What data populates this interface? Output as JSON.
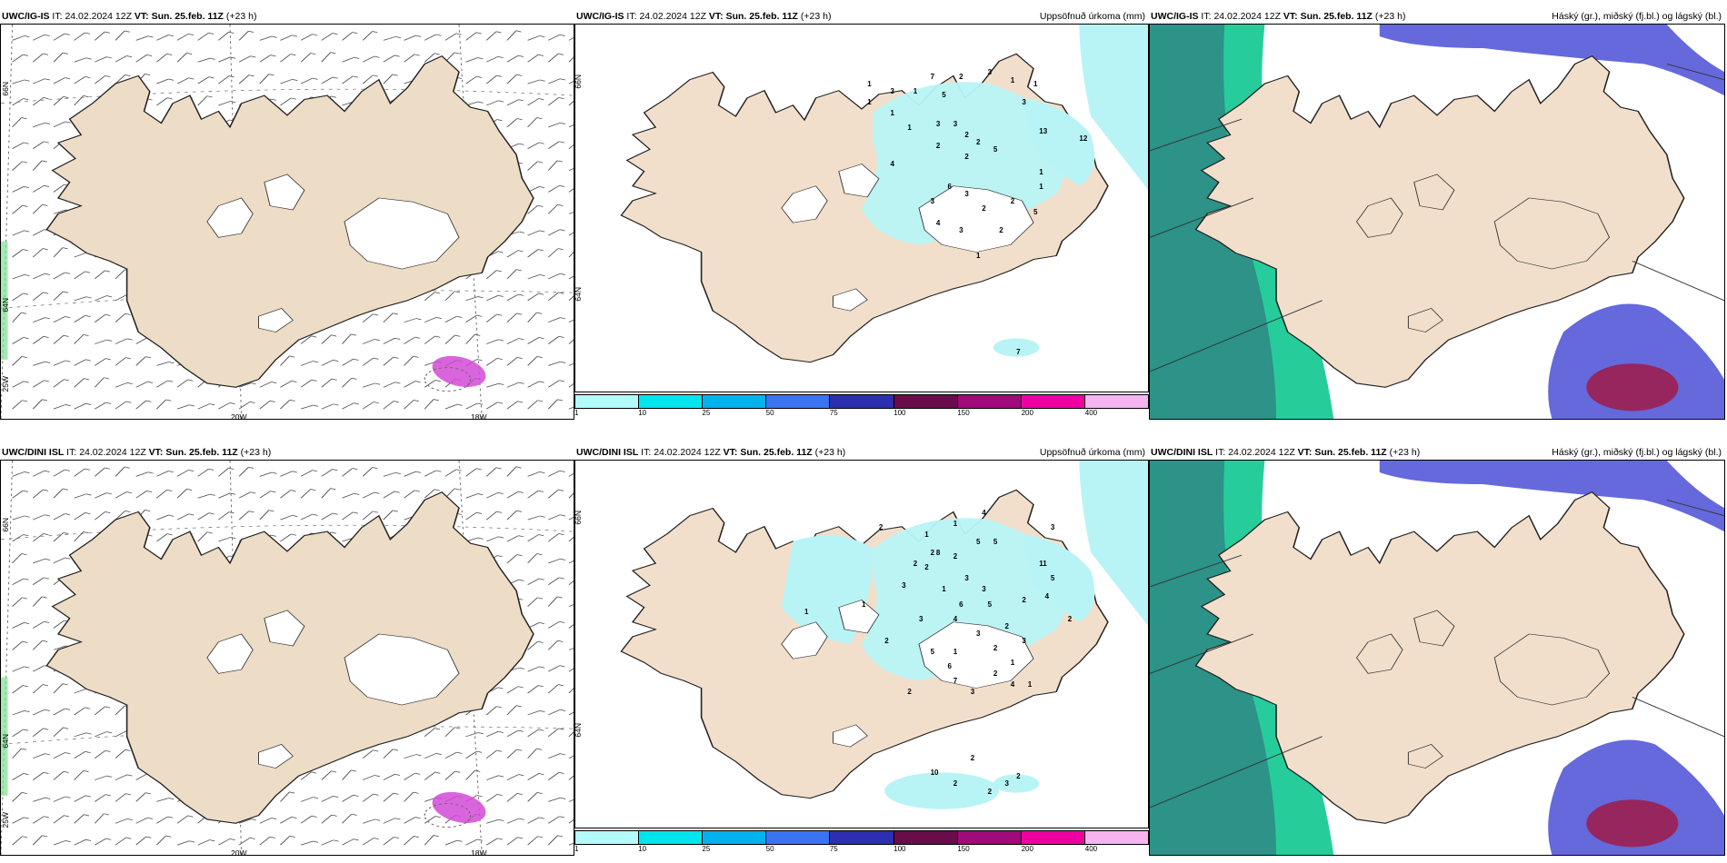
{
  "rows": [
    {
      "model": "UWC/IG-IS",
      "it_label": "IT:",
      "it_value": "24.02.2024 12Z",
      "vt_label": "VT: Sun. 25.feb. 11Z",
      "lead": "(+23 h)",
      "precip_numbers": [
        "1",
        "1",
        "3",
        "7",
        "2",
        "1",
        "1",
        "1",
        "5",
        "3",
        "3",
        "3",
        "1",
        "3",
        "2",
        "2",
        "2",
        "2",
        "5",
        "13",
        "12",
        "4",
        "6",
        "3",
        "2",
        "2",
        "1",
        "1",
        "3",
        "2",
        "4",
        "3",
        "5",
        "7",
        "1",
        "1"
      ],
      "lat_labels": [
        "66N",
        "64N"
      ],
      "lon_labels": [
        "20W",
        "18W",
        "25W"
      ]
    },
    {
      "model": "UWC/DINI ISL",
      "it_label": "IT:",
      "it_value": "24.02.2024 12Z",
      "vt_label": "VT: Sun. 25.feb. 11Z",
      "lead": "(+23 h)",
      "precip_numbers": [
        "4",
        "2",
        "1",
        "1",
        "2",
        "8",
        "5",
        "5",
        "2",
        "3",
        "3",
        "1",
        "2",
        "3",
        "2",
        "6",
        "4",
        "2",
        "2",
        "1",
        "1",
        "6",
        "3",
        "11",
        "5",
        "4",
        "2",
        "1",
        "3",
        "5",
        "2",
        "7",
        "3",
        "2",
        "4",
        "3",
        "1",
        "2",
        "1",
        "5",
        "2",
        "10",
        "2",
        "3",
        "2",
        "2",
        "3",
        "2"
      ],
      "lat_labels": [
        "66N",
        "64N"
      ],
      "lon_labels": [
        "20W",
        "18W",
        "25W"
      ]
    }
  ],
  "precip_title": "Uppsöfnuð úrkoma (mm)",
  "cloud_title": "Háský (gr.), miðský (fj.bl.) og lágský (bl.)",
  "legend": {
    "colors": [
      "#b3fbfb",
      "#00e5ee",
      "#00b2ee",
      "#3b74f2",
      "#2b2fb0",
      "#6a0c4a",
      "#a10a7a",
      "#ee00a0",
      "#f5b3f0"
    ],
    "labels": [
      "1",
      "10",
      "25",
      "50",
      "75",
      "100",
      "150",
      "200",
      "400"
    ]
  },
  "colors": {
    "land": "#f1dfcc",
    "land_wind": "#eddcc6",
    "precip_light": "#b8f4f6",
    "sea_green": "#00c48a",
    "sea_teal": "#2f8c86",
    "cloud_blue": "#4a4fd6",
    "cloud_light": "#7fa7ff",
    "cloud_red": "#9b1f4f",
    "snow_pink": "#d24ad6"
  }
}
